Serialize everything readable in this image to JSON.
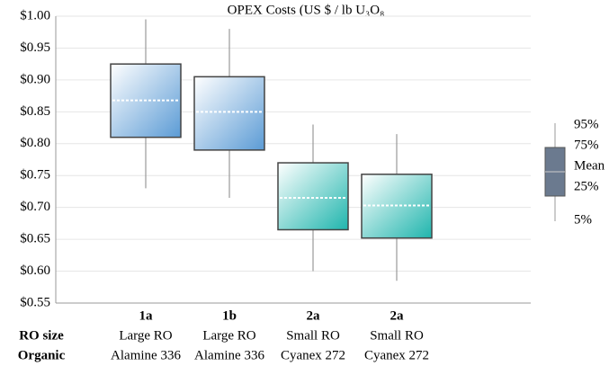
{
  "chart_data": {
    "type": "box",
    "title": "OPEX Costs (US $ / lb U₃O₈",
    "categories": [
      "1a",
      "1b",
      "2a",
      "2a"
    ],
    "row_labels": [
      "RO size",
      "Organic"
    ],
    "ro_size": [
      "Large RO",
      "Large RO",
      "Small RO",
      "Small RO"
    ],
    "organic": [
      "Alamine 336",
      "Alamine 336",
      "Cyanex 272",
      "Cyanex 272"
    ],
    "boxes": [
      {
        "color": "#5b9bd5",
        "low": 0.73,
        "q1": 0.81,
        "mean": 0.868,
        "q3": 0.925,
        "high": 0.995
      },
      {
        "color": "#5b9bd5",
        "low": 0.715,
        "q1": 0.79,
        "mean": 0.85,
        "q3": 0.905,
        "high": 0.98
      },
      {
        "color": "#1fb5ad",
        "low": 0.6,
        "q1": 0.665,
        "mean": 0.715,
        "q3": 0.77,
        "high": 0.83
      },
      {
        "color": "#1fb5ad",
        "low": 0.585,
        "q1": 0.652,
        "mean": 0.703,
        "q3": 0.752,
        "high": 0.815
      }
    ],
    "legend": [
      "95%",
      "75%",
      "Mean",
      "25%",
      "5%"
    ],
    "legend_color": "#6b7a8f",
    "ylim": [
      0.55,
      1.0
    ],
    "yticks": [
      {
        "value": 0.55,
        "label": "$0.55"
      },
      {
        "value": 0.6,
        "label": "$0.60"
      },
      {
        "value": 0.65,
        "label": "$0.65"
      },
      {
        "value": 0.7,
        "label": "$0.70"
      },
      {
        "value": 0.75,
        "label": "$0.75"
      },
      {
        "value": 0.8,
        "label": "$0.80"
      },
      {
        "value": 0.85,
        "label": "$0.85"
      },
      {
        "value": 0.9,
        "label": "$0.90"
      },
      {
        "value": 0.95,
        "label": "$0.95"
      },
      {
        "value": 1.0,
        "label": "$1.00"
      }
    ],
    "grid": true
  }
}
